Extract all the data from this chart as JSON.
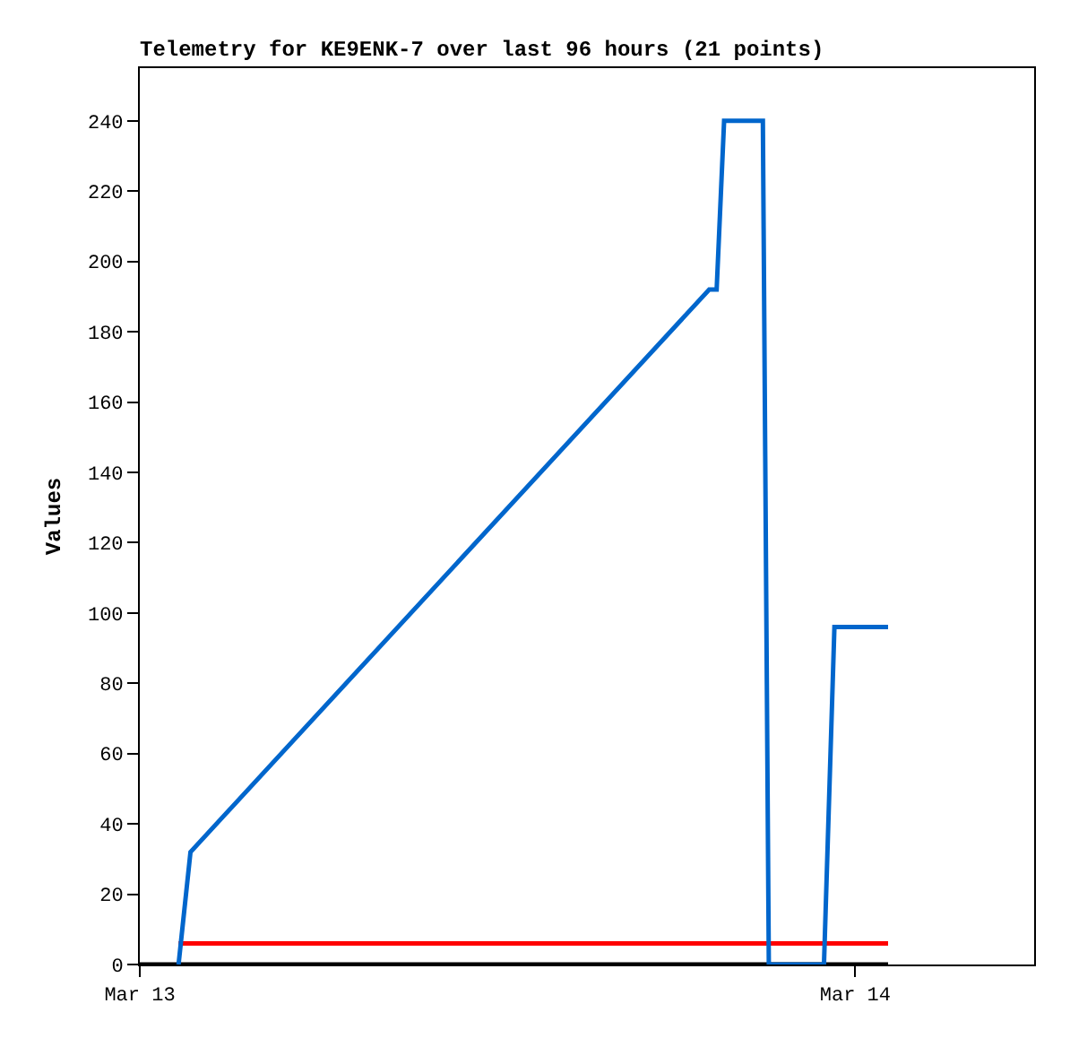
{
  "chart_data": {
    "type": "line",
    "title": "Telemetry for KE9ENK-7 over last 96 hours (21 points)",
    "ylabel": "Values",
    "xlim": [
      "--03-13T00:00",
      "--03-14T06:00"
    ],
    "xticks": [
      {
        "value": "--03-13",
        "label": "Mar 13"
      },
      {
        "value": "--03-14",
        "label": "Mar 14"
      }
    ],
    "ylim": [
      0,
      255
    ],
    "yticks": [
      0,
      20,
      40,
      60,
      80,
      100,
      120,
      140,
      160,
      180,
      200,
      220,
      240
    ],
    "marker": "none",
    "line_style": "solid",
    "series": [
      {
        "color": "#000000",
        "x": [
          "--03-13T00:00",
          "--03-14T01:06"
        ],
        "values": [
          0,
          0
        ]
      },
      {
        "color": "#ff0000",
        "x": [
          "--03-13T01:18",
          "--03-14T01:06"
        ],
        "values": [
          6,
          6
        ]
      },
      {
        "color": "#0066cc",
        "x": [
          "--03-13T01:18",
          "--03-13T01:42",
          "--03-13T19:06",
          "--03-13T19:21",
          "--03-13T19:36",
          "--03-13T20:54",
          "--03-13T21:06",
          "--03-13T22:57",
          "--03-13T23:18",
          "--03-14T01:06"
        ],
        "values": [
          0,
          32,
          192,
          192,
          240,
          240,
          0,
          0,
          96,
          96
        ]
      }
    ]
  }
}
